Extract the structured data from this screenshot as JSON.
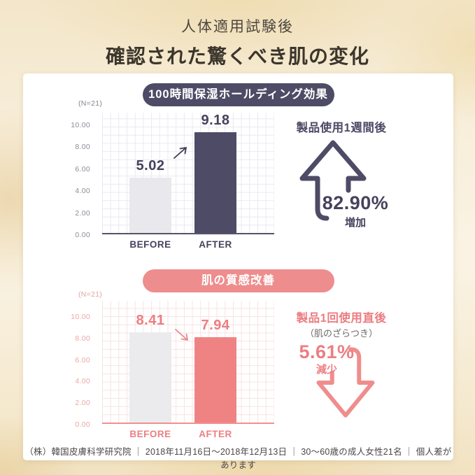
{
  "header": {
    "subtitle": "人体適用試験後",
    "title": "確認された驚くべき肌の変化"
  },
  "chart_data": [
    {
      "type": "bar",
      "title": "100時間保湿ホールディング効果",
      "sample_label": "(N=21)",
      "categories": [
        "BEFORE",
        "AFTER"
      ],
      "values": [
        5.02,
        9.18
      ],
      "value_labels": [
        "5.02",
        "9.18"
      ],
      "y_ticks": [
        "10.00",
        "8.00",
        "6.00",
        "4.00",
        "2.00",
        "0.00"
      ],
      "ylim": [
        0,
        11.1
      ],
      "xlabel": "",
      "ylabel": "",
      "grid": true,
      "legend_position": "none",
      "annotation": {
        "heading": "製品使用1週間後",
        "percent": "82.90%",
        "direction": "増加",
        "arrow": "up"
      },
      "colors": {
        "accent": "#4e4b66",
        "before_bar": "#e9e8ec",
        "after_bar": "#4e4b66",
        "grid": "#eae8f0",
        "tick_text": "#8d8b99"
      }
    },
    {
      "type": "bar",
      "title": "肌の質感改善",
      "sample_label": "(N=21)",
      "categories": [
        "BEFORE",
        "AFTER"
      ],
      "values": [
        8.41,
        7.94
      ],
      "value_labels": [
        "8.41",
        "7.94"
      ],
      "y_ticks": [
        "10.00",
        "8.00",
        "6.00",
        "4.00",
        "2.00",
        "0.00"
      ],
      "ylim": [
        0,
        11.1
      ],
      "xlabel": "",
      "ylabel": "",
      "grid": true,
      "legend_position": "none",
      "annotation": {
        "heading": "製品1回使用直後",
        "subheading": "（肌のざらつき）",
        "percent": "5.61%",
        "direction": "減少",
        "arrow": "down"
      },
      "colors": {
        "accent": "#ee8d8d",
        "before_bar": "#ebebee",
        "after_bar": "#ef8383",
        "grid": "#f8e2e2",
        "tick_text": "#eda6a6"
      }
    }
  ],
  "footer": {
    "text": "（株）韓国皮膚科学研究院 ｜ 2018年11月16日～2018年12月13日 ｜ 30～60歳の成人女性21名 ｜ 個人差があります"
  }
}
